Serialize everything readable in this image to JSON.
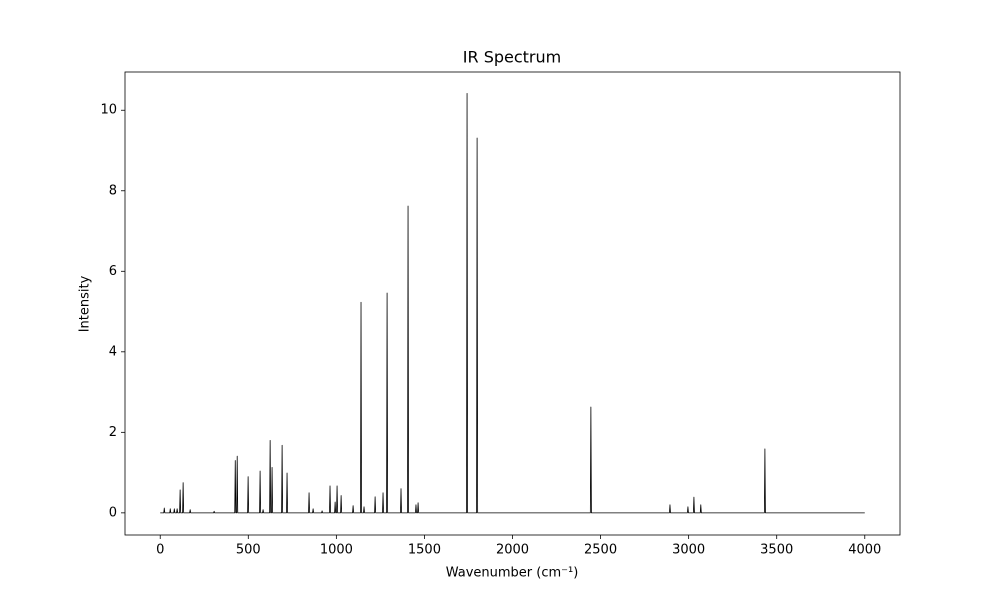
{
  "chart_data": {
    "type": "line",
    "title": "IR Spectrum",
    "x_label": "Wavenumber (cm⁻¹)",
    "y_label": "Intensity",
    "x": [
      0,
      20,
      23,
      26,
      54,
      57,
      60,
      77,
      80,
      83,
      93,
      96,
      99,
      110,
      113,
      116,
      127,
      130,
      133,
      167,
      170,
      173,
      303,
      306,
      309,
      423,
      426,
      429,
      434,
      437,
      440,
      496,
      499,
      502,
      564,
      567,
      570,
      581,
      584,
      587,
      621,
      624,
      627,
      632,
      635,
      638,
      689,
      692,
      695,
      717,
      720,
      723,
      842,
      845,
      848,
      865,
      868,
      871,
      916,
      919,
      922,
      961,
      964,
      967,
      990,
      993,
      996,
      1001,
      1004,
      1007,
      1024,
      1027,
      1030,
      1092,
      1095,
      1098,
      1137,
      1140,
      1143,
      1154,
      1157,
      1160,
      1217,
      1220,
      1223,
      1262,
      1265,
      1268,
      1285,
      1288,
      1291,
      1364,
      1367,
      1370,
      1404,
      1407,
      1410,
      1449,
      1452,
      1455,
      1461,
      1464,
      1467,
      1739,
      1742,
      1745,
      1796,
      1799,
      1802,
      2442,
      2445,
      2448,
      2891,
      2894,
      2897,
      2993,
      2996,
      2999,
      3027,
      3030,
      3033,
      3066,
      3069,
      3072,
      3430,
      3433,
      3436,
      4000
    ],
    "values": [
      0,
      0,
      0.12,
      0,
      0,
      0.1,
      0,
      0,
      0.1,
      0,
      0,
      0.1,
      0,
      0,
      0.57,
      0,
      0,
      0.75,
      0,
      0,
      0.08,
      0,
      0,
      0.04,
      0,
      0,
      1.3,
      0,
      0,
      1.41,
      0,
      0,
      0.9,
      0,
      0,
      1.04,
      0,
      0,
      0.08,
      0,
      0,
      1.8,
      0,
      0,
      1.13,
      0,
      0,
      1.68,
      0,
      0,
      0.99,
      0,
      0,
      0.5,
      0,
      0,
      0.1,
      0,
      0,
      0.05,
      0,
      0,
      0.67,
      0,
      0,
      0.27,
      0,
      0,
      0.67,
      0,
      0,
      0.43,
      0,
      0,
      0.18,
      0,
      0,
      5.23,
      0,
      0,
      0.15,
      0,
      0,
      0.4,
      0,
      0,
      0.5,
      0,
      0,
      5.46,
      0,
      0,
      0.6,
      0,
      0,
      7.62,
      0,
      0,
      0.2,
      0,
      0,
      0.25,
      0,
      0,
      10.42,
      0,
      0,
      9.31,
      0,
      0,
      2.63,
      0,
      0,
      0.2,
      0,
      0,
      0.15,
      0,
      0,
      0.39,
      0,
      0,
      0.2,
      0,
      0,
      1.59,
      0,
      0
    ],
    "color": "#000000",
    "xlim": [
      -200,
      4200
    ],
    "ylim": [
      -0.55,
      10.95
    ],
    "xticks": [
      0,
      500,
      1000,
      1500,
      2000,
      2500,
      3000,
      3500,
      4000
    ],
    "yticks": [
      0,
      2,
      4,
      6,
      8,
      10
    ],
    "grid": false
  }
}
